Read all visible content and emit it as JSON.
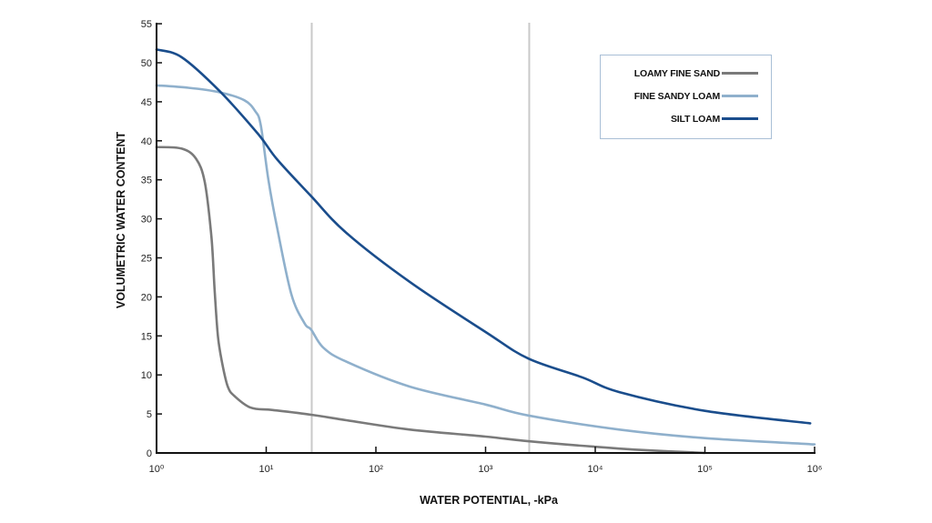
{
  "chart_data": {
    "type": "line",
    "title": "",
    "xlabel": "WATER POTENTIAL, -kPa",
    "ylabel": "VOLUMETRIC WATER CONTENT",
    "xscale": "log",
    "xlim": [
      1,
      1000000
    ],
    "ylim": [
      0,
      55
    ],
    "x_ticks": [
      "10⁰",
      "10¹",
      "10²",
      "10³",
      "10⁴",
      "10⁵",
      "10⁶"
    ],
    "y_ticks": [
      "0",
      "5",
      "10",
      "15",
      "20",
      "25",
      "30",
      "35",
      "40",
      "45",
      "50",
      "55"
    ],
    "grid": false,
    "reference_lines_x_kpa": [
      26,
      2500
    ],
    "legend_position": "upper right",
    "series": [
      {
        "name": "LOAMY FINE SAND",
        "color": "#7a7a7a",
        "x_log10": [
          0,
          0.23,
          0.36,
          0.44,
          0.5,
          0.53,
          0.56,
          0.6,
          0.65,
          0.71,
          0.86,
          1.06,
          1.41,
          1.73,
          2.31,
          3.0,
          3.39,
          3.99,
          4.4,
          5.0
        ],
        "y": [
          39.2,
          39.0,
          37.7,
          34.7,
          27.7,
          20.7,
          14.9,
          11.4,
          8.5,
          7.3,
          5.8,
          5.5,
          4.9,
          4.2,
          3.0,
          2.1,
          1.5,
          0.8,
          0.4,
          0.0
        ]
      },
      {
        "name": "FINE SANDY LOAM",
        "color": "#8fb0cc",
        "x_log10": [
          0,
          0.29,
          0.58,
          0.8,
          0.9,
          0.95,
          1.02,
          1.1,
          1.23,
          1.35,
          1.41,
          1.52,
          1.73,
          2.31,
          3.0,
          3.39,
          4.22,
          5.0,
          6.0
        ],
        "y": [
          47.1,
          46.8,
          46.2,
          45.2,
          43.8,
          42.0,
          35.0,
          28.8,
          20.3,
          16.6,
          15.8,
          13.5,
          11.7,
          8.5,
          6.2,
          4.8,
          3.0,
          1.9,
          1.1
        ]
      },
      {
        "name": "SILT LOAM",
        "color": "#1a4d8c",
        "x_log10": [
          0,
          0.23,
          0.58,
          0.93,
          1.1,
          1.41,
          1.73,
          2.31,
          3.0,
          3.39,
          3.88,
          4.22,
          5.0,
          5.96
        ],
        "y": [
          51.7,
          50.7,
          46.3,
          40.8,
          37.6,
          32.9,
          28.2,
          21.9,
          15.5,
          12.1,
          9.7,
          7.8,
          5.4,
          3.8
        ]
      }
    ]
  },
  "legend": {
    "items": [
      {
        "label": "LOAMY FINE SAND",
        "color": "#7a7a7a"
      },
      {
        "label": "FINE SANDY LOAM",
        "color": "#8fb0cc"
      },
      {
        "label": "SILT LOAM",
        "color": "#1a4d8c"
      }
    ]
  }
}
